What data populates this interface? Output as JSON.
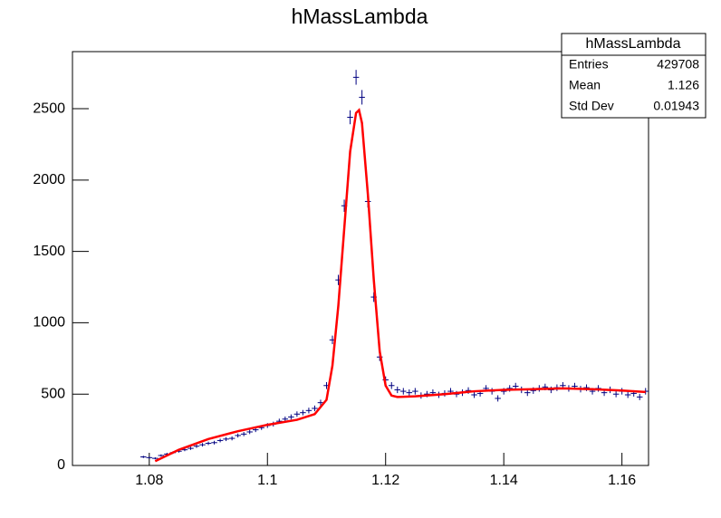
{
  "chart_data": {
    "type": "errorbar",
    "title": "hMassLambda",
    "xlim": [
      1.067,
      1.1645
    ],
    "ylim": [
      0,
      2900
    ],
    "xticks": [
      1.08,
      1.1,
      1.12,
      1.14,
      1.16
    ],
    "yticks": [
      0,
      500,
      1000,
      1500,
      2000,
      2500
    ],
    "stats": {
      "title": "hMassLambda",
      "rows": [
        [
          "Entries",
          429708
        ],
        [
          "Mean",
          1.126
        ],
        [
          "Std Dev",
          0.01943
        ]
      ]
    },
    "series": [
      {
        "type": "errorbar",
        "color": "#000080",
        "bin_width": 0.001,
        "x": [
          1.079,
          1.08,
          1.081,
          1.082,
          1.083,
          1.084,
          1.085,
          1.086,
          1.087,
          1.088,
          1.089,
          1.09,
          1.091,
          1.092,
          1.093,
          1.094,
          1.095,
          1.096,
          1.097,
          1.098,
          1.099,
          1.1,
          1.101,
          1.102,
          1.103,
          1.104,
          1.105,
          1.106,
          1.107,
          1.108,
          1.109,
          1.11,
          1.111,
          1.112,
          1.113,
          1.114,
          1.115,
          1.116,
          1.117,
          1.118,
          1.119,
          1.12,
          1.121,
          1.122,
          1.123,
          1.124,
          1.125,
          1.126,
          1.127,
          1.128,
          1.129,
          1.13,
          1.131,
          1.132,
          1.133,
          1.134,
          1.135,
          1.136,
          1.137,
          1.138,
          1.139,
          1.14,
          1.141,
          1.142,
          1.143,
          1.144,
          1.145,
          1.146,
          1.147,
          1.148,
          1.149,
          1.15,
          1.151,
          1.152,
          1.153,
          1.154,
          1.155,
          1.156,
          1.157,
          1.158,
          1.159,
          1.16,
          1.161,
          1.162,
          1.163,
          1.164
        ],
        "values": [
          60,
          55,
          50,
          70,
          80,
          90,
          100,
          110,
          120,
          135,
          145,
          155,
          160,
          175,
          185,
          190,
          210,
          220,
          235,
          250,
          265,
          280,
          290,
          310,
          325,
          340,
          360,
          370,
          385,
          400,
          440,
          560,
          880,
          1300,
          1820,
          2440,
          2720,
          2580,
          1850,
          1180,
          760,
          600,
          560,
          530,
          520,
          510,
          520,
          490,
          500,
          510,
          495,
          505,
          520,
          500,
          510,
          525,
          495,
          505,
          540,
          520,
          470,
          520,
          540,
          555,
          530,
          510,
          525,
          540,
          550,
          530,
          545,
          560,
          540,
          555,
          535,
          545,
          520,
          540,
          510,
          530,
          500,
          520,
          495,
          505,
          480,
          520
        ],
        "errors": [
          8,
          7,
          7,
          8,
          9,
          9,
          10,
          10,
          11,
          12,
          12,
          12,
          13,
          13,
          14,
          14,
          14,
          15,
          15,
          16,
          16,
          17,
          17,
          18,
          18,
          18,
          19,
          19,
          20,
          20,
          21,
          24,
          30,
          36,
          43,
          49,
          52,
          51,
          43,
          34,
          28,
          24,
          24,
          23,
          23,
          23,
          23,
          22,
          22,
          23,
          22,
          22,
          23,
          22,
          23,
          23,
          22,
          22,
          23,
          23,
          22,
          23,
          23,
          24,
          23,
          23,
          23,
          23,
          23,
          23,
          23,
          24,
          23,
          24,
          23,
          23,
          23,
          23,
          23,
          23,
          22,
          23,
          22,
          22,
          22,
          23
        ]
      },
      {
        "type": "line",
        "color": "#ff0000",
        "x": [
          1.081,
          1.085,
          1.09,
          1.095,
          1.1,
          1.105,
          1.108,
          1.11,
          1.111,
          1.112,
          1.113,
          1.114,
          1.115,
          1.1155,
          1.116,
          1.117,
          1.118,
          1.119,
          1.12,
          1.121,
          1.122,
          1.125,
          1.13,
          1.135,
          1.14,
          1.145,
          1.15,
          1.155,
          1.16,
          1.164
        ],
        "values": [
          30,
          110,
          185,
          240,
          285,
          320,
          360,
          460,
          700,
          1120,
          1660,
          2200,
          2470,
          2490,
          2400,
          1900,
          1300,
          800,
          560,
          490,
          480,
          485,
          500,
          520,
          530,
          535,
          540,
          535,
          525,
          515
        ]
      }
    ]
  }
}
